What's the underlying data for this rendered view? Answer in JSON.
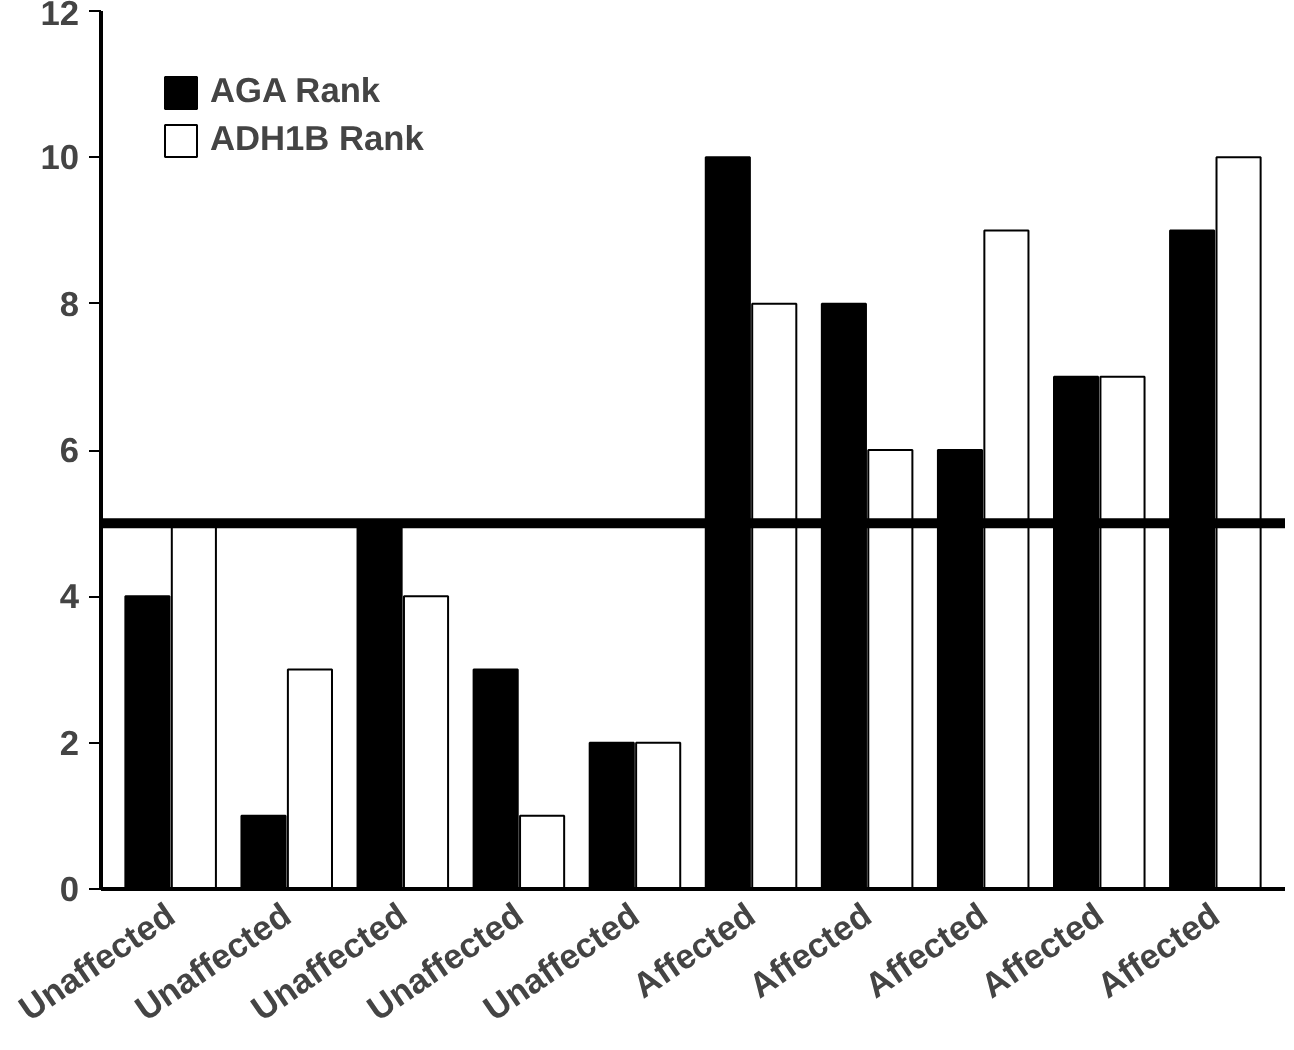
{
  "chart_data": {
    "type": "bar",
    "categories": [
      "Unaffected",
      "Unaffected",
      "Unaffected",
      "Unaffected",
      "Unaffected",
      "Affected",
      "Affected",
      "Affected",
      "Affected",
      "Affected"
    ],
    "series": [
      {
        "name": "AGA Rank",
        "color": "#000000",
        "values": [
          4,
          1,
          5,
          3,
          2,
          10,
          8,
          6,
          7,
          9
        ]
      },
      {
        "name": "ADH1B Rank",
        "color": "#ffffff",
        "values": [
          5,
          3,
          4,
          1,
          2,
          8,
          6,
          9,
          7,
          10
        ]
      }
    ],
    "ylim": [
      0,
      12
    ],
    "yticks": [
      0,
      2,
      4,
      6,
      8,
      10,
      12
    ],
    "grid": false,
    "legend": "top left",
    "ref_lines": [
      {
        "axis": "y",
        "value": 5
      }
    ]
  }
}
